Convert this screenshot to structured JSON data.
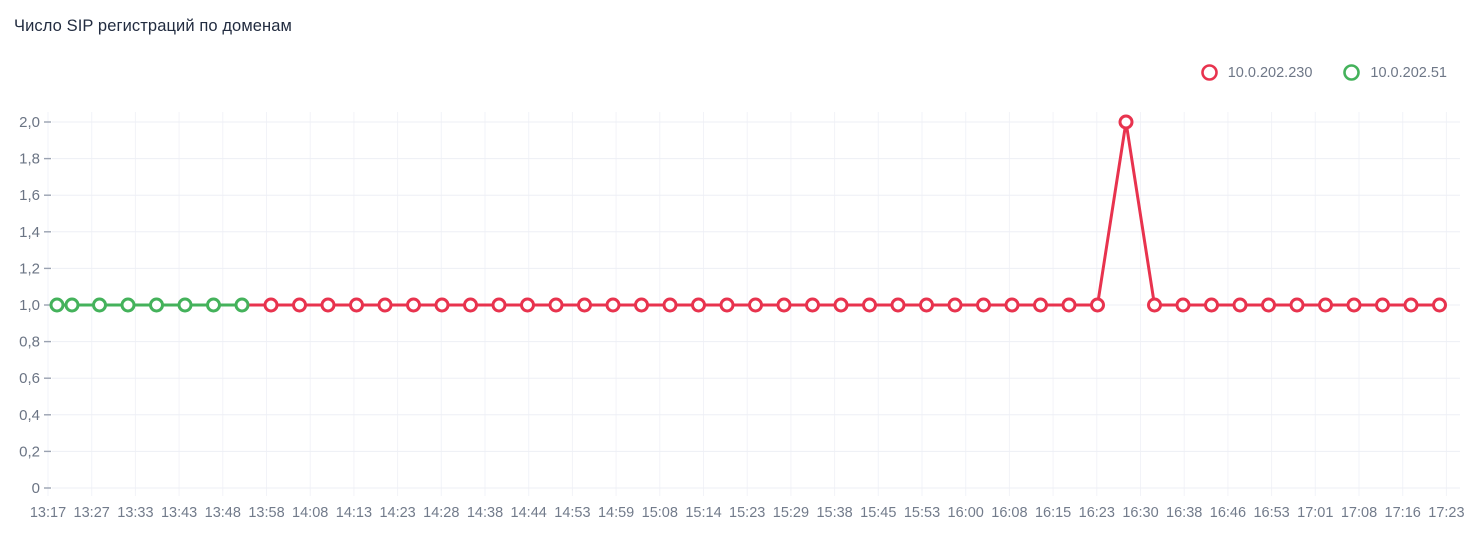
{
  "header": {
    "title": "Число SIP регистраций по доменам"
  },
  "legend": {
    "items": [
      {
        "label": "10.0.202.230",
        "color": "#e8334e"
      },
      {
        "label": "10.0.202.51",
        "color": "#44b25b"
      }
    ]
  },
  "chart_data": {
    "type": "line",
    "title": "Число SIP регистраций по доменам",
    "xlabel": "",
    "ylabel": "",
    "ylim": [
      0,
      2
    ],
    "grid": true,
    "legend_position": "top-right",
    "marker_style": "open-circle",
    "y_tick_values": [
      0,
      0.2,
      0.4,
      0.6,
      0.8,
      1.0,
      1.2,
      1.4,
      1.6,
      1.8,
      2.0
    ],
    "y_tick_labels": [
      "0",
      "0,2",
      "0,4",
      "0,6",
      "0,8",
      "1,0",
      "1,2",
      "1,4",
      "1,6",
      "1,8",
      "2,0"
    ],
    "x_tick_labels": [
      "13:17",
      "13:27",
      "13:33",
      "13:43",
      "13:48",
      "13:58",
      "14:08",
      "14:13",
      "14:23",
      "14:28",
      "14:38",
      "14:44",
      "14:53",
      "14:59",
      "15:08",
      "15:14",
      "15:23",
      "15:29",
      "15:38",
      "15:45",
      "15:53",
      "16:00",
      "16:08",
      "16:15",
      "16:23",
      "16:30",
      "16:38",
      "16:46",
      "16:53",
      "17:01",
      "17:08",
      "17:16",
      "17:23"
    ],
    "series": [
      {
        "name": "10.0.202.230",
        "color": "#e8334e",
        "lead_in": [
          242,
          1
        ],
        "points": [
          [
            271,
            1
          ],
          [
            299.5,
            1
          ],
          [
            328,
            1
          ],
          [
            356.5,
            1
          ],
          [
            385,
            1
          ],
          [
            413.5,
            1
          ],
          [
            442,
            1
          ],
          [
            470.5,
            1
          ],
          [
            499,
            1
          ],
          [
            527.5,
            1
          ],
          [
            556,
            1
          ],
          [
            584.5,
            1
          ],
          [
            613,
            1
          ],
          [
            641.5,
            1
          ],
          [
            670,
            1
          ],
          [
            698.5,
            1
          ],
          [
            727,
            1
          ],
          [
            755.5,
            1
          ],
          [
            784,
            1
          ],
          [
            812.5,
            1
          ],
          [
            841,
            1
          ],
          [
            869.5,
            1
          ],
          [
            898,
            1
          ],
          [
            926.5,
            1
          ],
          [
            955,
            1
          ],
          [
            983.5,
            1
          ],
          [
            1012,
            1
          ],
          [
            1040.5,
            1
          ],
          [
            1069,
            1
          ],
          [
            1097.5,
            1
          ],
          [
            1126,
            2
          ],
          [
            1154.5,
            1
          ],
          [
            1183,
            1
          ],
          [
            1211.5,
            1
          ],
          [
            1240,
            1
          ],
          [
            1268.5,
            1
          ],
          [
            1297,
            1
          ],
          [
            1325.5,
            1
          ],
          [
            1354,
            1
          ],
          [
            1382.5,
            1
          ],
          [
            1411,
            1
          ],
          [
            1439.5,
            1
          ]
        ]
      },
      {
        "name": "10.0.202.51",
        "color": "#44b25b",
        "points": [
          [
            57,
            1
          ],
          [
            72,
            1
          ],
          [
            99.5,
            1
          ],
          [
            128,
            1
          ],
          [
            156.5,
            1
          ],
          [
            185,
            1
          ],
          [
            213.5,
            1
          ],
          [
            242,
            1
          ]
        ]
      }
    ]
  }
}
